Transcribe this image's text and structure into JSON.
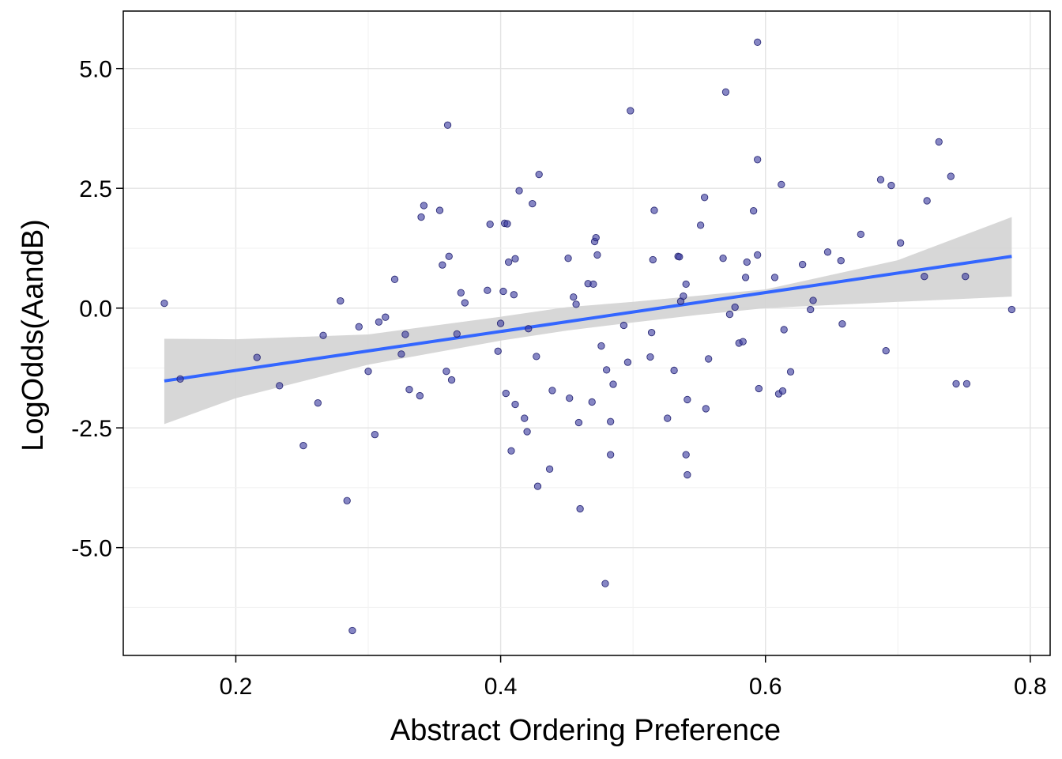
{
  "chart_data": {
    "type": "scatter",
    "title": "",
    "xlabel": "Abstract Ordering Preference",
    "ylabel": "LogOdds(AandB)",
    "xlim": [
      0.115,
      0.815
    ],
    "ylim": [
      -7.25,
      6.2
    ],
    "x_ticks": [
      0.2,
      0.4,
      0.6,
      0.8
    ],
    "x_tick_labels": [
      "0.2",
      "0.4",
      "0.6",
      "0.8"
    ],
    "y_ticks": [
      5.0,
      2.5,
      0.0,
      -2.5,
      -5.0
    ],
    "y_tick_labels": [
      "5.0",
      "2.5",
      "0.0",
      "-2.5",
      "-5.0"
    ],
    "grid": true,
    "point_color": "#3C3CA0",
    "fit_line": {
      "x": [
        0.146,
        0.786
      ],
      "y": [
        -1.52,
        1.08
      ],
      "color": "#3366FF"
    },
    "confidence_band": {
      "x": [
        0.146,
        0.2,
        0.3,
        0.4,
        0.45,
        0.5,
        0.55,
        0.6,
        0.7,
        0.786
      ],
      "lower": [
        -2.42,
        -1.88,
        -1.18,
        -0.68,
        -0.47,
        -0.3,
        -0.14,
        0.0,
        0.13,
        0.24
      ],
      "upper": [
        -0.64,
        -0.65,
        -0.55,
        -0.18,
        0.02,
        0.13,
        0.26,
        0.39,
        1.0,
        1.9
      ],
      "color": "#D3D3D3"
    },
    "points": [
      {
        "x": 0.146,
        "y": 0.1
      },
      {
        "x": 0.158,
        "y": -1.48
      },
      {
        "x": 0.216,
        "y": -1.03
      },
      {
        "x": 0.233,
        "y": -1.62
      },
      {
        "x": 0.251,
        "y": -2.87
      },
      {
        "x": 0.262,
        "y": -1.98
      },
      {
        "x": 0.266,
        "y": -0.57
      },
      {
        "x": 0.279,
        "y": 0.15
      },
      {
        "x": 0.284,
        "y": -4.02
      },
      {
        "x": 0.288,
        "y": -6.73
      },
      {
        "x": 0.293,
        "y": -0.39
      },
      {
        "x": 0.3,
        "y": -1.32
      },
      {
        "x": 0.305,
        "y": -2.64
      },
      {
        "x": 0.308,
        "y": -0.29
      },
      {
        "x": 0.313,
        "y": -0.19
      },
      {
        "x": 0.32,
        "y": 0.6
      },
      {
        "x": 0.325,
        "y": -0.96
      },
      {
        "x": 0.328,
        "y": -0.55
      },
      {
        "x": 0.331,
        "y": -1.7
      },
      {
        "x": 0.339,
        "y": -1.83
      },
      {
        "x": 0.34,
        "y": 1.9
      },
      {
        "x": 0.342,
        "y": 2.14
      },
      {
        "x": 0.354,
        "y": 2.04
      },
      {
        "x": 0.356,
        "y": 0.9
      },
      {
        "x": 0.359,
        "y": -1.32
      },
      {
        "x": 0.36,
        "y": 3.82
      },
      {
        "x": 0.361,
        "y": 1.08
      },
      {
        "x": 0.363,
        "y": -1.5
      },
      {
        "x": 0.367,
        "y": -0.54
      },
      {
        "x": 0.37,
        "y": 0.32
      },
      {
        "x": 0.373,
        "y": 0.11
      },
      {
        "x": 0.39,
        "y": 0.37
      },
      {
        "x": 0.392,
        "y": 1.75
      },
      {
        "x": 0.398,
        "y": -0.9
      },
      {
        "x": 0.4,
        "y": -0.32
      },
      {
        "x": 0.402,
        "y": 0.35
      },
      {
        "x": 0.403,
        "y": 1.77
      },
      {
        "x": 0.404,
        "y": -1.78
      },
      {
        "x": 0.405,
        "y": 1.76
      },
      {
        "x": 0.406,
        "y": 0.96
      },
      {
        "x": 0.408,
        "y": -2.98
      },
      {
        "x": 0.41,
        "y": 0.28
      },
      {
        "x": 0.411,
        "y": -2.01
      },
      {
        "x": 0.411,
        "y": 1.03
      },
      {
        "x": 0.414,
        "y": 2.45
      },
      {
        "x": 0.418,
        "y": -2.3
      },
      {
        "x": 0.42,
        "y": -2.58
      },
      {
        "x": 0.421,
        "y": -0.43
      },
      {
        "x": 0.424,
        "y": 2.18
      },
      {
        "x": 0.427,
        "y": -1.01
      },
      {
        "x": 0.428,
        "y": -3.72
      },
      {
        "x": 0.429,
        "y": 2.79
      },
      {
        "x": 0.437,
        "y": -3.36
      },
      {
        "x": 0.439,
        "y": -1.72
      },
      {
        "x": 0.451,
        "y": 1.04
      },
      {
        "x": 0.452,
        "y": -1.88
      },
      {
        "x": 0.455,
        "y": 0.23
      },
      {
        "x": 0.457,
        "y": 0.08
      },
      {
        "x": 0.459,
        "y": -2.39
      },
      {
        "x": 0.46,
        "y": -4.19
      },
      {
        "x": 0.466,
        "y": 0.51
      },
      {
        "x": 0.469,
        "y": -1.96
      },
      {
        "x": 0.47,
        "y": 0.5
      },
      {
        "x": 0.471,
        "y": 1.39
      },
      {
        "x": 0.472,
        "y": 1.47
      },
      {
        "x": 0.473,
        "y": 1.11
      },
      {
        "x": 0.476,
        "y": -0.79
      },
      {
        "x": 0.479,
        "y": -5.75
      },
      {
        "x": 0.48,
        "y": -1.29
      },
      {
        "x": 0.483,
        "y": -3.06
      },
      {
        "x": 0.483,
        "y": -2.37
      },
      {
        "x": 0.485,
        "y": -1.59
      },
      {
        "x": 0.493,
        "y": -0.36
      },
      {
        "x": 0.496,
        "y": -1.13
      },
      {
        "x": 0.498,
        "y": 4.12
      },
      {
        "x": 0.513,
        "y": -1.02
      },
      {
        "x": 0.514,
        "y": -0.51
      },
      {
        "x": 0.515,
        "y": 1.01
      },
      {
        "x": 0.516,
        "y": 2.04
      },
      {
        "x": 0.526,
        "y": -2.3
      },
      {
        "x": 0.531,
        "y": -1.3
      },
      {
        "x": 0.534,
        "y": 1.08
      },
      {
        "x": 0.535,
        "y": 1.07
      },
      {
        "x": 0.536,
        "y": 0.14
      },
      {
        "x": 0.538,
        "y": 0.25
      },
      {
        "x": 0.54,
        "y": 0.5
      },
      {
        "x": 0.54,
        "y": -3.06
      },
      {
        "x": 0.541,
        "y": -1.91
      },
      {
        "x": 0.541,
        "y": -3.48
      },
      {
        "x": 0.551,
        "y": 1.73
      },
      {
        "x": 0.554,
        "y": 2.31
      },
      {
        "x": 0.555,
        "y": -2.1
      },
      {
        "x": 0.557,
        "y": -1.06
      },
      {
        "x": 0.568,
        "y": 1.04
      },
      {
        "x": 0.57,
        "y": 4.51
      },
      {
        "x": 0.573,
        "y": -0.13
      },
      {
        "x": 0.577,
        "y": 0.02
      },
      {
        "x": 0.58,
        "y": -0.73
      },
      {
        "x": 0.583,
        "y": -0.7
      },
      {
        "x": 0.585,
        "y": 0.64
      },
      {
        "x": 0.586,
        "y": 0.96
      },
      {
        "x": 0.591,
        "y": 2.03
      },
      {
        "x": 0.594,
        "y": 3.1
      },
      {
        "x": 0.594,
        "y": 1.11
      },
      {
        "x": 0.594,
        "y": 5.55
      },
      {
        "x": 0.595,
        "y": -1.68
      },
      {
        "x": 0.607,
        "y": 0.64
      },
      {
        "x": 0.61,
        "y": -1.79
      },
      {
        "x": 0.612,
        "y": 2.58
      },
      {
        "x": 0.613,
        "y": -1.73
      },
      {
        "x": 0.614,
        "y": -0.45
      },
      {
        "x": 0.619,
        "y": -1.33
      },
      {
        "x": 0.628,
        "y": 0.91
      },
      {
        "x": 0.634,
        "y": -0.03
      },
      {
        "x": 0.636,
        "y": 0.16
      },
      {
        "x": 0.647,
        "y": 1.17
      },
      {
        "x": 0.657,
        "y": 0.99
      },
      {
        "x": 0.658,
        "y": -0.33
      },
      {
        "x": 0.672,
        "y": 1.54
      },
      {
        "x": 0.687,
        "y": 2.68
      },
      {
        "x": 0.691,
        "y": -0.89
      },
      {
        "x": 0.695,
        "y": 2.56
      },
      {
        "x": 0.702,
        "y": 1.36
      },
      {
        "x": 0.72,
        "y": 0.66
      },
      {
        "x": 0.722,
        "y": 2.24
      },
      {
        "x": 0.731,
        "y": 3.47
      },
      {
        "x": 0.74,
        "y": 2.75
      },
      {
        "x": 0.744,
        "y": -1.58
      },
      {
        "x": 0.751,
        "y": 0.66
      },
      {
        "x": 0.752,
        "y": -1.58
      },
      {
        "x": 0.786,
        "y": -0.03
      }
    ]
  }
}
